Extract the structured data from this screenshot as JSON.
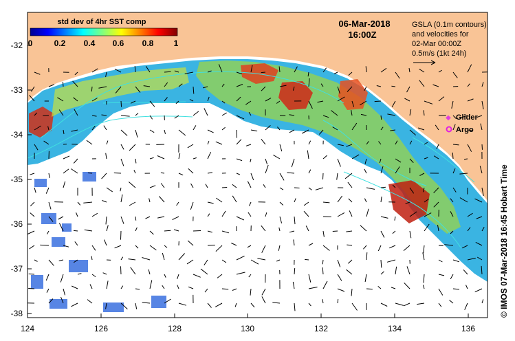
{
  "map": {
    "colorbar": {
      "title": "std dev of 4hr SST comp",
      "ticks": [
        "0",
        "0.2",
        "0.4",
        "0.6",
        "0.8",
        "1"
      ]
    },
    "date": "06-Mar-2018",
    "time": "16:00Z",
    "note_lines": [
      "GSLA (0.1m contours)",
      "and velocities for",
      "02-Mar 00:00Z",
      "0.5m/s (1kt 24h)"
    ],
    "legend": {
      "glider_label": "Glider",
      "argo_label": "Argo",
      "glider_color": "#e040e0",
      "argo_color": "#e020e0"
    },
    "credit": "© IMOS 07-Mar-2018 16:45 Hobart Time",
    "x_ticks": [
      "124",
      "126",
      "128",
      "130",
      "132",
      "134",
      "136"
    ],
    "y_ticks": [
      "-32",
      "-33",
      "-34",
      "-35",
      "-36",
      "-37",
      "-38"
    ],
    "land_color": "#f9c496",
    "ocean_color": "#ffffff"
  }
}
